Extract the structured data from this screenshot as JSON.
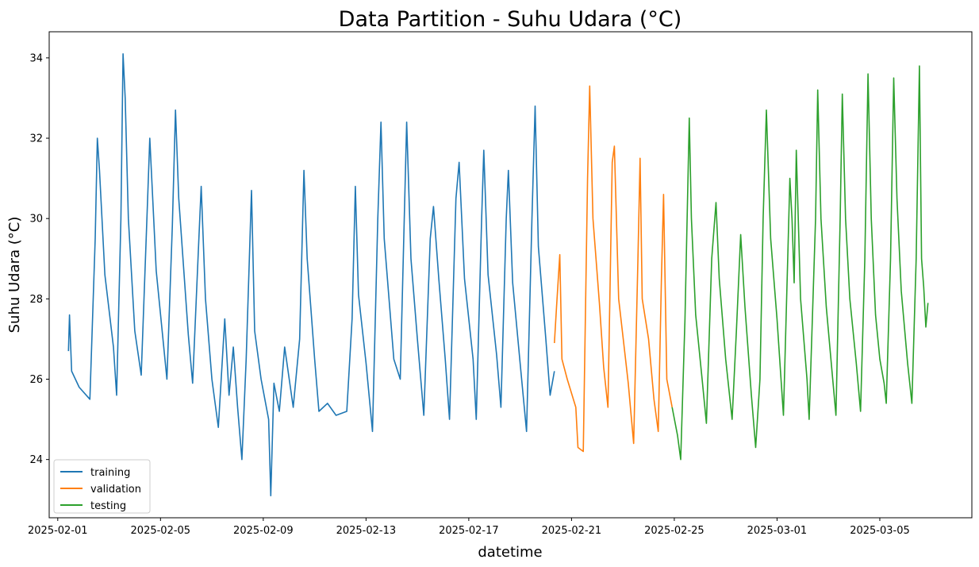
{
  "chart_data": {
    "type": "line",
    "title": "Data Partition - Suhu Udara (°C)",
    "xlabel": "datetime",
    "ylabel": "Suhu Udara (°C)",
    "xlim": [
      "2025-01-31T16:00",
      "2025-03-08T14:00"
    ],
    "ylim": [
      22.55,
      34.65
    ],
    "grid": false,
    "legend": "lower left",
    "x_ticks": [
      "2025-02-01",
      "2025-02-05",
      "2025-02-09",
      "2025-02-13",
      "2025-02-17",
      "2025-02-21",
      "2025-02-25",
      "2025-03-01",
      "2025-03-05"
    ],
    "y_ticks": [
      24,
      26,
      28,
      30,
      32,
      34
    ],
    "series": [
      {
        "name": "training",
        "color": "#1f77b4",
        "points": [
          [
            "2025-02-01T10:00",
            26.7
          ],
          [
            "2025-02-01T11:00",
            27.6
          ],
          [
            "2025-02-01T13:00",
            26.2
          ],
          [
            "2025-02-01T20:00",
            25.8
          ],
          [
            "2025-02-02T06:00",
            25.5
          ],
          [
            "2025-02-02T11:00",
            29.5
          ],
          [
            "2025-02-02T13:00",
            32.0
          ],
          [
            "2025-02-02T15:00",
            31.2
          ],
          [
            "2025-02-02T20:00",
            28.6
          ],
          [
            "2025-02-03T04:00",
            26.8
          ],
          [
            "2025-02-03T07:00",
            25.6
          ],
          [
            "2025-02-03T11:00",
            30.0
          ],
          [
            "2025-02-03T13:00",
            34.1
          ],
          [
            "2025-02-03T15:00",
            33.0
          ],
          [
            "2025-02-03T18:00",
            30.0
          ],
          [
            "2025-02-04T00:00",
            27.2
          ],
          [
            "2025-02-04T06:00",
            26.1
          ],
          [
            "2025-02-04T12:00",
            30.5
          ],
          [
            "2025-02-04T14:00",
            32.0
          ],
          [
            "2025-02-04T20:00",
            28.7
          ],
          [
            "2025-02-05T06:00",
            26.0
          ],
          [
            "2025-02-05T11:00",
            29.8
          ],
          [
            "2025-02-05T14:00",
            32.7
          ],
          [
            "2025-02-05T17:00",
            30.5
          ],
          [
            "2025-02-06T02:00",
            27.1
          ],
          [
            "2025-02-06T06:00",
            25.9
          ],
          [
            "2025-02-06T12:00",
            29.6
          ],
          [
            "2025-02-06T14:00",
            30.8
          ],
          [
            "2025-02-06T18:00",
            28.0
          ],
          [
            "2025-02-07T00:00",
            26.0
          ],
          [
            "2025-02-07T06:00",
            24.8
          ],
          [
            "2025-02-07T12:00",
            27.5
          ],
          [
            "2025-02-07T16:00",
            25.6
          ],
          [
            "2025-02-07T20:00",
            26.8
          ],
          [
            "2025-02-08T00:00",
            25.3
          ],
          [
            "2025-02-08T04:00",
            24.0
          ],
          [
            "2025-02-08T08:00",
            26.5
          ],
          [
            "2025-02-08T11:00",
            29.0
          ],
          [
            "2025-02-08T13:00",
            30.7
          ],
          [
            "2025-02-08T16:00",
            27.2
          ],
          [
            "2025-02-08T22:00",
            26.0
          ],
          [
            "2025-02-09T05:00",
            25.0
          ],
          [
            "2025-02-09T07:00",
            23.1
          ],
          [
            "2025-02-09T10:00",
            25.9
          ],
          [
            "2025-02-09T15:00",
            25.2
          ],
          [
            "2025-02-09T20:00",
            26.8
          ],
          [
            "2025-02-10T04:00",
            25.3
          ],
          [
            "2025-02-10T10:00",
            27.0
          ],
          [
            "2025-02-10T14:00",
            31.2
          ],
          [
            "2025-02-10T17:00",
            29.0
          ],
          [
            "2025-02-11T00:00",
            26.5
          ],
          [
            "2025-02-11T04:00",
            25.2
          ],
          [
            "2025-02-11T12:00",
            25.4
          ],
          [
            "2025-02-11T20:00",
            25.1
          ],
          [
            "2025-02-12T06:00",
            25.2
          ],
          [
            "2025-02-12T11:00",
            27.5
          ],
          [
            "2025-02-12T14:00",
            30.8
          ],
          [
            "2025-02-12T17:00",
            28.1
          ],
          [
            "2025-02-13T00:00",
            26.4
          ],
          [
            "2025-02-13T06:00",
            24.7
          ],
          [
            "2025-02-13T11:00",
            30.0
          ],
          [
            "2025-02-13T14:00",
            32.4
          ],
          [
            "2025-02-13T17:00",
            29.5
          ],
          [
            "2025-02-14T02:00",
            26.5
          ],
          [
            "2025-02-14T08:00",
            26.0
          ],
          [
            "2025-02-14T14:00",
            32.4
          ],
          [
            "2025-02-14T18:00",
            29.0
          ],
          [
            "2025-02-15T00:00",
            27.0
          ],
          [
            "2025-02-15T06:00",
            25.1
          ],
          [
            "2025-02-15T12:00",
            29.5
          ],
          [
            "2025-02-15T15:00",
            30.3
          ],
          [
            "2025-02-15T20:00",
            28.5
          ],
          [
            "2025-02-16T02:00",
            26.5
          ],
          [
            "2025-02-16T06:00",
            25.0
          ],
          [
            "2025-02-16T12:00",
            30.5
          ],
          [
            "2025-02-16T15:00",
            31.4
          ],
          [
            "2025-02-16T20:00",
            28.5
          ],
          [
            "2025-02-17T04:00",
            26.5
          ],
          [
            "2025-02-17T07:00",
            25.0
          ],
          [
            "2025-02-17T12:00",
            30.0
          ],
          [
            "2025-02-17T14:00",
            31.7
          ],
          [
            "2025-02-17T18:00",
            28.6
          ],
          [
            "2025-02-18T02:00",
            26.6
          ],
          [
            "2025-02-18T06:00",
            25.3
          ],
          [
            "2025-02-18T11:00",
            30.0
          ],
          [
            "2025-02-18T13:00",
            31.2
          ],
          [
            "2025-02-18T17:00",
            28.4
          ],
          [
            "2025-02-19T00:00",
            26.4
          ],
          [
            "2025-02-19T06:00",
            24.7
          ],
          [
            "2025-02-19T11:00",
            30.0
          ],
          [
            "2025-02-19T14:00",
            32.8
          ],
          [
            "2025-02-19T17:00",
            29.3
          ],
          [
            "2025-02-20T00:00",
            27.0
          ],
          [
            "2025-02-20T04:00",
            25.6
          ],
          [
            "2025-02-20T08:00",
            26.2
          ]
        ]
      },
      {
        "name": "validation",
        "color": "#ff7f0e",
        "points": [
          [
            "2025-02-20T08:00",
            26.9
          ],
          [
            "2025-02-20T10:00",
            27.8
          ],
          [
            "2025-02-20T13:00",
            29.1
          ],
          [
            "2025-02-20T15:00",
            26.5
          ],
          [
            "2025-02-20T20:00",
            26.0
          ],
          [
            "2025-02-21T04:00",
            25.3
          ],
          [
            "2025-02-21T06:00",
            24.3
          ],
          [
            "2025-02-21T11:00",
            24.2
          ],
          [
            "2025-02-21T15:00",
            31.0
          ],
          [
            "2025-02-21T17:00",
            33.3
          ],
          [
            "2025-02-21T20:00",
            30.0
          ],
          [
            "2025-02-22T02:00",
            27.9
          ],
          [
            "2025-02-22T06:00",
            26.3
          ],
          [
            "2025-02-22T10:00",
            25.3
          ],
          [
            "2025-02-22T14:00",
            31.4
          ],
          [
            "2025-02-22T16:00",
            31.8
          ],
          [
            "2025-02-22T20:00",
            28.0
          ],
          [
            "2025-02-23T02:00",
            26.6
          ],
          [
            "2025-02-23T05:00",
            25.9
          ],
          [
            "2025-02-23T10:00",
            24.4
          ],
          [
            "2025-02-23T14:00",
            29.0
          ],
          [
            "2025-02-23T16:00",
            31.5
          ],
          [
            "2025-02-23T18:00",
            28.0
          ],
          [
            "2025-02-24T00:00",
            27.0
          ],
          [
            "2025-02-24T05:00",
            25.5
          ],
          [
            "2025-02-24T09:00",
            24.7
          ],
          [
            "2025-02-24T12:00",
            28.5
          ],
          [
            "2025-02-24T14:00",
            30.6
          ],
          [
            "2025-02-24T17:00",
            26.0
          ],
          [
            "2025-02-24T22:00",
            25.3
          ]
        ]
      },
      {
        "name": "testing",
        "color": "#2ca02c",
        "points": [
          [
            "2025-02-24T22:00",
            25.3
          ],
          [
            "2025-02-25T03:00",
            24.6
          ],
          [
            "2025-02-25T06:00",
            24.0
          ],
          [
            "2025-02-25T10:00",
            27.5
          ],
          [
            "2025-02-25T14:00",
            32.5
          ],
          [
            "2025-02-25T16:00",
            30.0
          ],
          [
            "2025-02-25T20:00",
            27.6
          ],
          [
            "2025-02-26T02:00",
            26.0
          ],
          [
            "2025-02-26T06:00",
            24.9
          ],
          [
            "2025-02-26T11:00",
            29.0
          ],
          [
            "2025-02-26T15:00",
            30.4
          ],
          [
            "2025-02-26T18:00",
            28.5
          ],
          [
            "2025-02-27T00:00",
            26.5
          ],
          [
            "2025-02-27T06:00",
            25.0
          ],
          [
            "2025-02-27T10:00",
            27.2
          ],
          [
            "2025-02-27T14:00",
            29.6
          ],
          [
            "2025-02-27T18:00",
            27.8
          ],
          [
            "2025-02-28T00:00",
            25.6
          ],
          [
            "2025-02-28T04:00",
            24.3
          ],
          [
            "2025-02-28T08:00",
            26.0
          ],
          [
            "2025-02-28T11:00",
            30.0
          ],
          [
            "2025-02-28T14:00",
            32.7
          ],
          [
            "2025-02-28T18:00",
            29.5
          ],
          [
            "2025-03-01T00:00",
            27.5
          ],
          [
            "2025-03-01T06:00",
            25.1
          ],
          [
            "2025-03-01T10:00",
            29.0
          ],
          [
            "2025-03-01T12:00",
            31.0
          ],
          [
            "2025-03-01T14:00",
            30.0
          ],
          [
            "2025-03-01T16:00",
            28.4
          ],
          [
            "2025-03-01T18:00",
            31.7
          ],
          [
            "2025-03-01T22:00",
            28.0
          ],
          [
            "2025-03-02T04:00",
            26.0
          ],
          [
            "2025-03-02T06:00",
            25.0
          ],
          [
            "2025-03-02T12:00",
            30.0
          ],
          [
            "2025-03-02T14:00",
            33.2
          ],
          [
            "2025-03-02T17:00",
            30.0
          ],
          [
            "2025-03-02T22:00",
            27.8
          ],
          [
            "2025-03-03T04:00",
            26.0
          ],
          [
            "2025-03-03T07:00",
            25.1
          ],
          [
            "2025-03-03T11:00",
            30.0
          ],
          [
            "2025-03-03T13:00",
            33.1
          ],
          [
            "2025-03-03T16:00",
            30.0
          ],
          [
            "2025-03-03T20:00",
            28.0
          ],
          [
            "2025-03-04T02:00",
            26.4
          ],
          [
            "2025-03-04T06:00",
            25.2
          ],
          [
            "2025-03-04T10:00",
            29.0
          ],
          [
            "2025-03-04T13:00",
            33.6
          ],
          [
            "2025-03-04T16:00",
            30.0
          ],
          [
            "2025-03-04T20:00",
            27.6
          ],
          [
            "2025-03-05T00:00",
            26.5
          ],
          [
            "2025-03-05T04:00",
            25.9
          ],
          [
            "2025-03-05T06:00",
            25.4
          ],
          [
            "2025-03-05T10:00",
            29.0
          ],
          [
            "2025-03-05T13:00",
            33.5
          ],
          [
            "2025-03-05T16:00",
            30.5
          ],
          [
            "2025-03-05T20:00",
            28.2
          ],
          [
            "2025-03-06T02:00",
            26.4
          ],
          [
            "2025-03-06T06:00",
            25.4
          ],
          [
            "2025-03-06T10:00",
            29.0
          ],
          [
            "2025-03-06T13:00",
            33.8
          ],
          [
            "2025-03-06T15:00",
            29.0
          ],
          [
            "2025-03-06T17:00",
            28.3
          ],
          [
            "2025-03-06T19:00",
            27.3
          ],
          [
            "2025-03-06T21:00",
            27.9
          ]
        ]
      }
    ]
  }
}
